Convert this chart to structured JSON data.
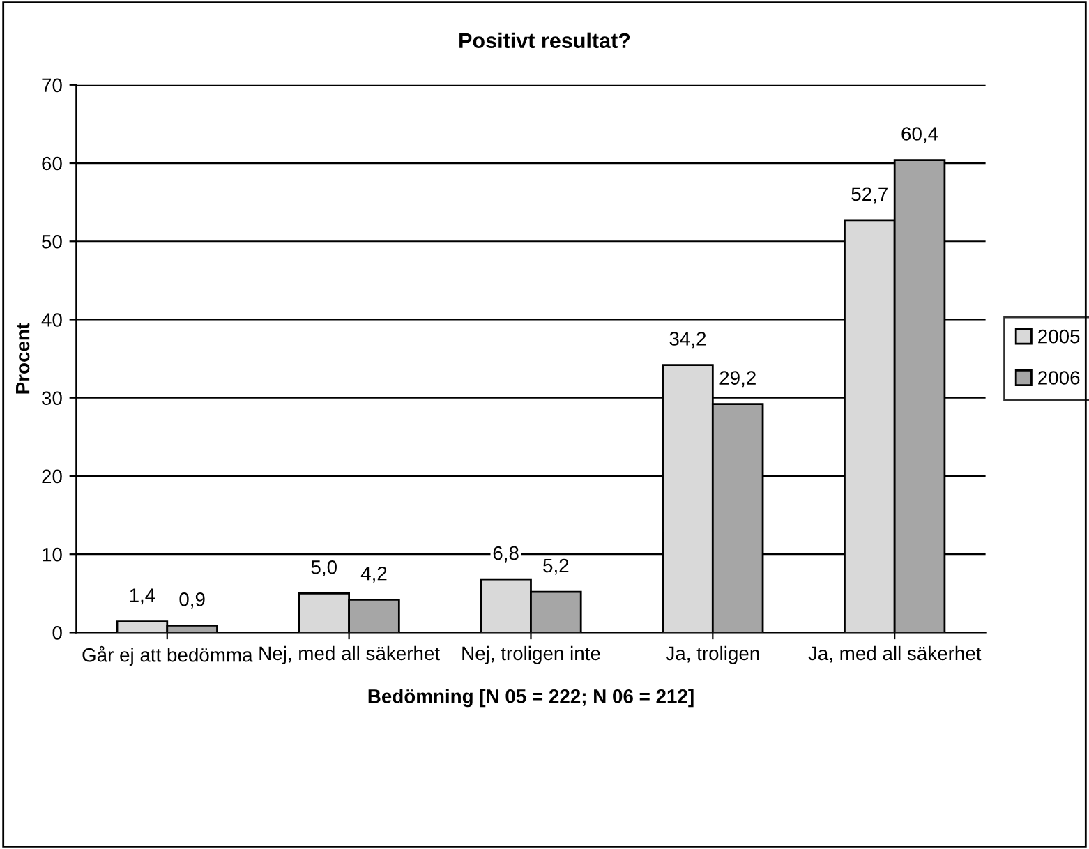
{
  "chart_data": {
    "type": "bar",
    "title": "Positivt resultat?",
    "xlabel": "Bedömning [N 05 = 222; N 06 = 212]",
    "ylabel": "Procent",
    "categories": [
      "Går ej att bedömma",
      "Nej, med all säkerhet",
      "Nej, troligen inte",
      "Ja, troligen",
      "Ja, med all säkerhet"
    ],
    "series": [
      {
        "name": "2005",
        "color": "#d9d9d9",
        "values": [
          1.4,
          5.0,
          6.8,
          34.2,
          52.7
        ],
        "value_labels": [
          "1,4",
          "5,0",
          "6,8",
          "34,2",
          "52,7"
        ]
      },
      {
        "name": "2006",
        "color": "#a6a6a6",
        "values": [
          0.9,
          4.2,
          5.2,
          29.2,
          60.4
        ],
        "value_labels": [
          "0,9",
          "4,2",
          "5,2",
          "29,2",
          "60,4"
        ]
      }
    ],
    "ylim": [
      0,
      70
    ],
    "yticks": [
      0,
      10,
      20,
      30,
      40,
      50,
      60,
      70
    ],
    "grid": "y",
    "legend": "right"
  }
}
